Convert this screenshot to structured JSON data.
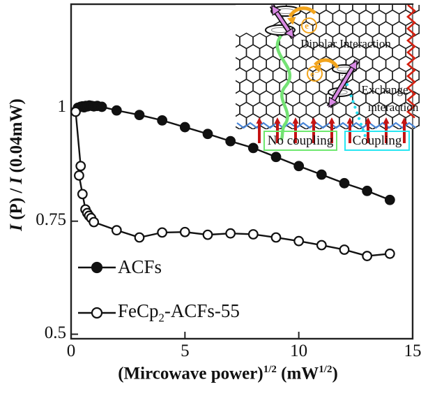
{
  "chart_data": {
    "type": "line",
    "title": "",
    "xlabel_text": "(Mircowave power)^1/2 (mW^1/2)",
    "ylabel_text": "I (P) / I (0.04mW)",
    "xlabel_parts": {
      "p1": "(Mircowave power)",
      "sup1": "1/2",
      "p2": " (mW",
      "sup2": "1/2",
      "p3": ")"
    },
    "ylabel_parts": {
      "i1": "I",
      "m1": " (P) / ",
      "i2": "I",
      "m2": " (0.04mW)"
    },
    "xlim": [
      0,
      15
    ],
    "ylim": [
      0.49,
      1.23
    ],
    "grid": false,
    "x_ticks": [
      {
        "v": 0,
        "label": "0"
      },
      {
        "v": 5,
        "label": "5"
      },
      {
        "v": 10,
        "label": "10"
      },
      {
        "v": 15,
        "label": "15"
      }
    ],
    "y_ticks": [
      {
        "v": 1,
        "label": "1"
      },
      {
        "v": 0.75,
        "label": "0.75"
      },
      {
        "v": 0.5,
        "label": "0.5"
      }
    ],
    "series": [
      {
        "name": "ACFs",
        "marker": "filled-circle",
        "color": "#111111",
        "x": [
          0.3,
          0.42,
          0.5,
          0.57,
          0.65,
          0.72,
          0.8,
          0.9,
          1.0,
          1.15,
          1.35,
          2,
          3,
          4,
          5,
          6,
          7,
          8,
          9,
          10,
          11,
          12,
          13,
          14
        ],
        "y": [
          1.001,
          1.003,
          1.004,
          1.002,
          1.005,
          1.004,
          1.006,
          1.005,
          1.004,
          1.005,
          1.003,
          0.995,
          0.985,
          0.973,
          0.958,
          0.943,
          0.927,
          0.912,
          0.892,
          0.872,
          0.853,
          0.834,
          0.817,
          0.797
        ]
      },
      {
        "name": "FeCp2-ACFs-55",
        "marker": "open-circle",
        "color": "#111111",
        "x": [
          0.2,
          0.42,
          0.35,
          0.5,
          0.63,
          0.71,
          0.79,
          0.88,
          1.0,
          2,
          3,
          4,
          5,
          6,
          7,
          8,
          9,
          10,
          11,
          12,
          13,
          14
        ],
        "y": [
          0.992,
          0.872,
          0.851,
          0.81,
          0.776,
          0.768,
          0.762,
          0.757,
          0.748,
          0.73,
          0.714,
          0.725,
          0.726,
          0.72,
          0.723,
          0.721,
          0.714,
          0.706,
          0.697,
          0.687,
          0.673,
          0.678
        ]
      }
    ],
    "legend_position": "lower-left-inside"
  },
  "legend": {
    "entries": [
      {
        "marker": "filled-circle",
        "parts": {
          "pre": "ACFs",
          "sub": "",
          "post": ""
        }
      },
      {
        "marker": "open-circle",
        "parts": {
          "pre": "FeCp",
          "sub": "2",
          "post": "-ACFs-55"
        }
      }
    ]
  },
  "inset": {
    "dipolar_label": "Dipolar Interaction",
    "exchange_label_line1": "Exchange",
    "exchange_label_line2": "interaction",
    "no_coupling_label": "No coupling",
    "coupling_label": "Coupling",
    "electron_label": "e⁻",
    "colors": {
      "lattice": "#1c1c1c",
      "edge_red": "#d42010",
      "edge_blue": "#4a86d8",
      "spin_red": "#c41414",
      "green": "#74e274",
      "cyan": "#27dff2",
      "orange": "#f2a41c",
      "magenta": "#d98ae4",
      "no_coupling_border": "#6ee86e",
      "coupling_border": "#28e6f2"
    }
  }
}
